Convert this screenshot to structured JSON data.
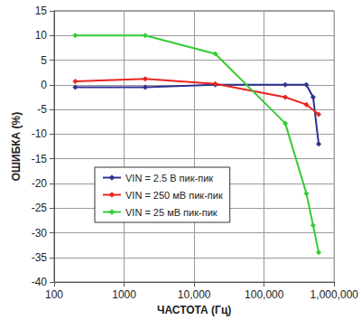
{
  "chart_data": {
    "type": "line",
    "x_label": "ЧАСТОТА (Гц)",
    "y_label": "ОШИБКА (%)",
    "log": "x",
    "grid": true,
    "legend": "left",
    "marker": "diamond",
    "xlim": [
      100,
      1000000
    ],
    "xticks": [
      {
        "value": 100,
        "label": "100"
      },
      1000,
      {
        "value": 10000,
        "label": "10,000"
      },
      {
        "value": 100000,
        "label": "100,000"
      },
      {
        "value": 1000000,
        "label": "1,000,000"
      }
    ],
    "ylim": [
      -40,
      15
    ],
    "yticks": [
      -40,
      -35,
      -30,
      -25,
      -20,
      -15,
      -10,
      -5,
      0,
      5,
      10,
      15
    ],
    "series": [
      {
        "name": "VIN = 2.5 В пик-пик",
        "color": "#2e3192",
        "x": [
          200,
          2000,
          20000,
          200000,
          400000,
          500000,
          600000
        ],
        "values": [
          -0.5,
          -0.5,
          0,
          0,
          0,
          -2.5,
          -12
        ]
      },
      {
        "name": "VIN = 250 мВ пик-пик",
        "color": "#e8251f",
        "x": [
          200,
          2000,
          20000,
          200000,
          400000,
          600000
        ],
        "values": [
          0.7,
          1.2,
          0.2,
          -2.5,
          -4,
          -6
        ]
      },
      {
        "name": "VIN = 25 мВ пик-пик",
        "color": "#33cc33",
        "x": [
          200,
          2000,
          20000,
          200000,
          400000,
          500000,
          600000
        ],
        "values": [
          10,
          10,
          6.3,
          -7.8,
          -22,
          -28.5,
          -34
        ]
      }
    ]
  }
}
